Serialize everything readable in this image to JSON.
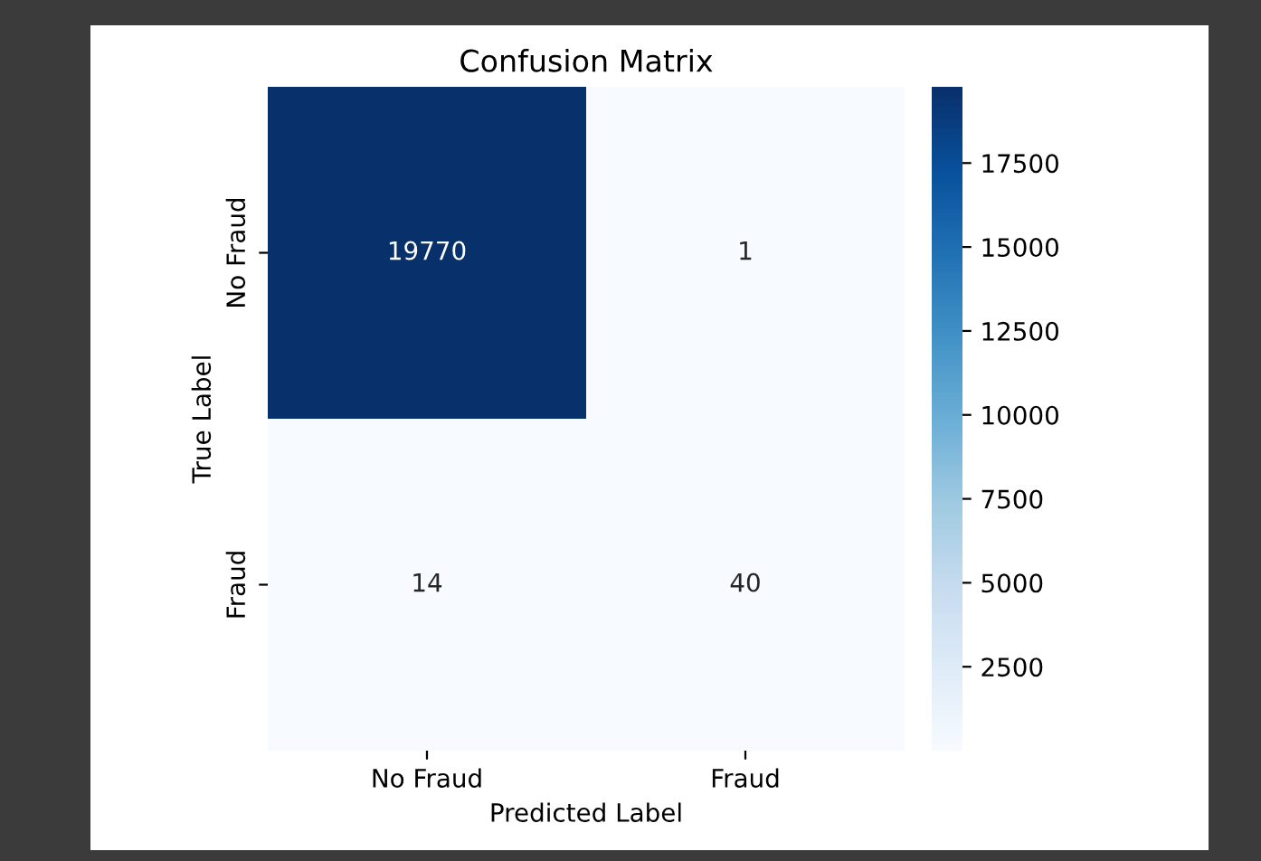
{
  "chart_data": {
    "type": "heatmap",
    "title": "Confusion Matrix",
    "xlabel": "Predicted Label",
    "ylabel": "True Label",
    "categories": [
      "No Fraud",
      "Fraud"
    ],
    "y_categories": [
      "No Fraud",
      "Fraud"
    ],
    "cells": [
      [
        19770,
        1
      ],
      [
        14,
        40
      ]
    ],
    "data_labels": true,
    "clim": [
      1,
      19770
    ],
    "cticks": [
      2500,
      5000,
      7500,
      10000,
      12500,
      15000,
      17500
    ]
  }
}
